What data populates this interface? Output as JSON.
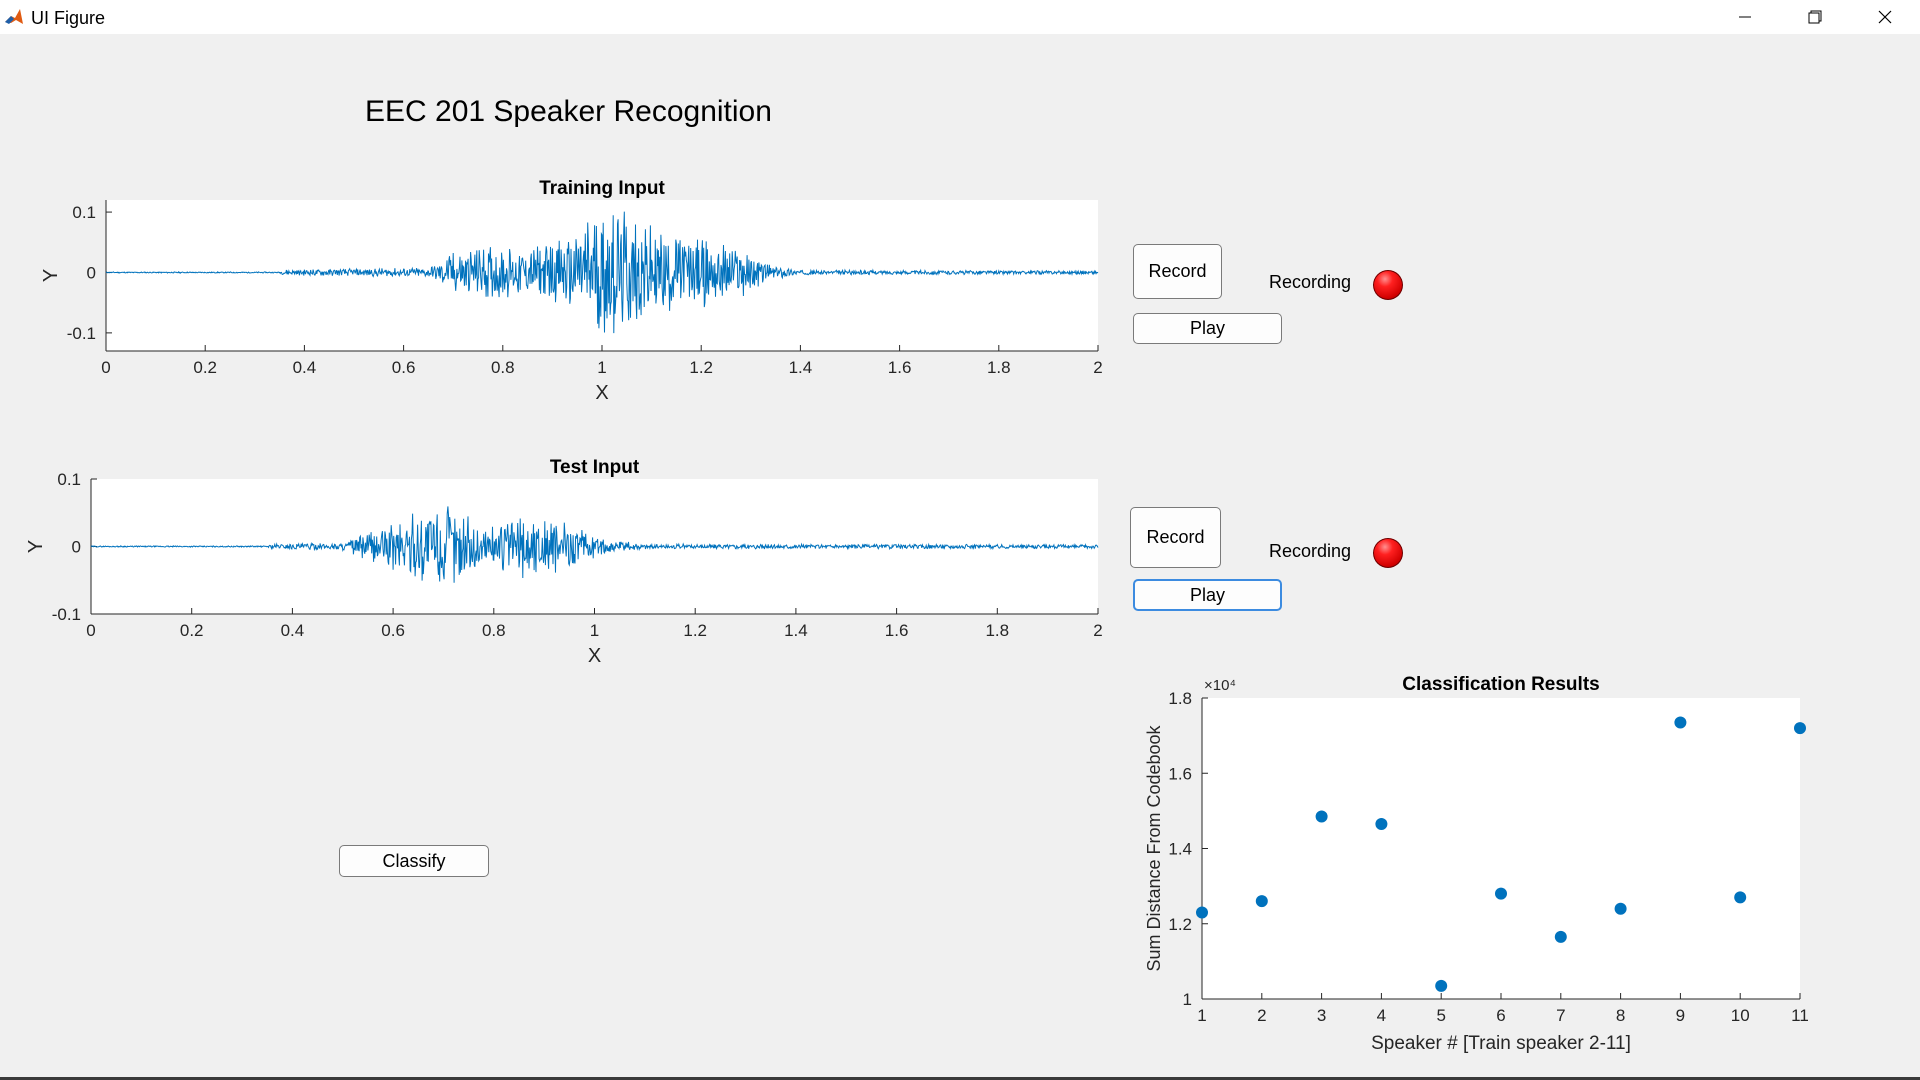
{
  "window": {
    "title": "UI Figure"
  },
  "app_title": "EEC 201 Speaker Recognition",
  "training": {
    "record_label": "Record",
    "play_label": "Play",
    "recording_label": "Recording",
    "lamp_color": "#ff0000"
  },
  "test": {
    "record_label": "Record",
    "play_label": "Play",
    "recording_label": "Recording",
    "lamp_color": "#ff0000"
  },
  "classify_label": "Classify",
  "accent": "#0072bd",
  "chart_data": [
    {
      "id": "training",
      "type": "line",
      "title": "Training Input",
      "xlabel": "X",
      "ylabel": "Y",
      "xlim": [
        0,
        2
      ],
      "ylim": [
        -0.13,
        0.12
      ],
      "xticks": [
        0,
        0.2,
        0.4,
        0.6,
        0.8,
        1,
        1.2,
        1.4,
        1.6,
        1.8,
        2
      ],
      "xtick_labels": [
        "0",
        "0.2",
        "0.4",
        "0.6",
        "0.8",
        "1",
        "1.2",
        "1.4",
        "1.6",
        "1.8",
        "2"
      ],
      "yticks": [
        -0.1,
        0,
        0.1
      ],
      "ytick_labels": [
        "-0.1",
        "0",
        "0.1"
      ],
      "series": [
        {
          "color": "#0072bd",
          "envelope": [
            {
              "x": 0,
              "a": 0.001
            },
            {
              "x": 0.35,
              "a": 0.001
            },
            {
              "x": 0.36,
              "a": 0.005
            },
            {
              "x": 0.65,
              "a": 0.008
            },
            {
              "x": 0.7,
              "a": 0.035
            },
            {
              "x": 0.78,
              "a": 0.045
            },
            {
              "x": 0.85,
              "a": 0.04
            },
            {
              "x": 0.93,
              "a": 0.06
            },
            {
              "x": 1.0,
              "a": 0.12
            },
            {
              "x": 1.05,
              "a": 0.1
            },
            {
              "x": 1.12,
              "a": 0.07
            },
            {
              "x": 1.2,
              "a": 0.06
            },
            {
              "x": 1.28,
              "a": 0.045
            },
            {
              "x": 1.33,
              "a": 0.015
            },
            {
              "x": 1.4,
              "a": 0.004
            },
            {
              "x": 2.0,
              "a": 0.003
            }
          ]
        }
      ]
    },
    {
      "id": "test",
      "type": "line",
      "title": "Test Input",
      "xlabel": "X",
      "ylabel": "Y",
      "xlim": [
        0,
        2
      ],
      "ylim": [
        -0.1,
        0.1
      ],
      "xticks": [
        0,
        0.2,
        0.4,
        0.6,
        0.8,
        1,
        1.2,
        1.4,
        1.6,
        1.8,
        2
      ],
      "xtick_labels": [
        "0",
        "0.2",
        "0.4",
        "0.6",
        "0.8",
        "1",
        "1.2",
        "1.4",
        "1.6",
        "1.8",
        "2"
      ],
      "yticks": [
        -0.1,
        0,
        0.1
      ],
      "ytick_labels": [
        "-0.1",
        "0",
        "0.1"
      ],
      "series": [
        {
          "color": "#0072bd",
          "envelope": [
            {
              "x": 0,
              "a": 0.001
            },
            {
              "x": 0.35,
              "a": 0.001
            },
            {
              "x": 0.36,
              "a": 0.004
            },
            {
              "x": 0.5,
              "a": 0.006
            },
            {
              "x": 0.58,
              "a": 0.03
            },
            {
              "x": 0.65,
              "a": 0.055
            },
            {
              "x": 0.7,
              "a": 0.07
            },
            {
              "x": 0.75,
              "a": 0.045
            },
            {
              "x": 0.8,
              "a": 0.035
            },
            {
              "x": 0.86,
              "a": 0.05
            },
            {
              "x": 0.95,
              "a": 0.035
            },
            {
              "x": 1.02,
              "a": 0.012
            },
            {
              "x": 1.1,
              "a": 0.004
            },
            {
              "x": 2.0,
              "a": 0.003
            }
          ]
        }
      ]
    },
    {
      "id": "classification",
      "type": "scatter",
      "title": "Classification Results",
      "xlabel": "Speaker # [Train speaker 2-11]",
      "ylabel": "Sum Distance From Codebook",
      "y_exponent": "×10⁴",
      "xlim": [
        1,
        11
      ],
      "ylim": [
        1.0,
        1.8
      ],
      "xticks": [
        1,
        2,
        3,
        4,
        5,
        6,
        7,
        8,
        9,
        10,
        11
      ],
      "xtick_labels": [
        "1",
        "2",
        "3",
        "4",
        "5",
        "6",
        "7",
        "8",
        "9",
        "10",
        "11"
      ],
      "yticks": [
        1.0,
        1.2,
        1.4,
        1.6,
        1.8
      ],
      "ytick_labels": [
        "1",
        "1.2",
        "1.4",
        "1.6",
        "1.8"
      ],
      "series": [
        {
          "color": "#0072bd",
          "x": [
            1,
            2,
            3,
            4,
            5,
            6,
            7,
            8,
            9,
            10,
            11
          ],
          "y": [
            1.23,
            1.26,
            1.485,
            1.465,
            1.035,
            1.28,
            1.165,
            1.24,
            1.735,
            1.27,
            1.72
          ]
        }
      ]
    }
  ]
}
